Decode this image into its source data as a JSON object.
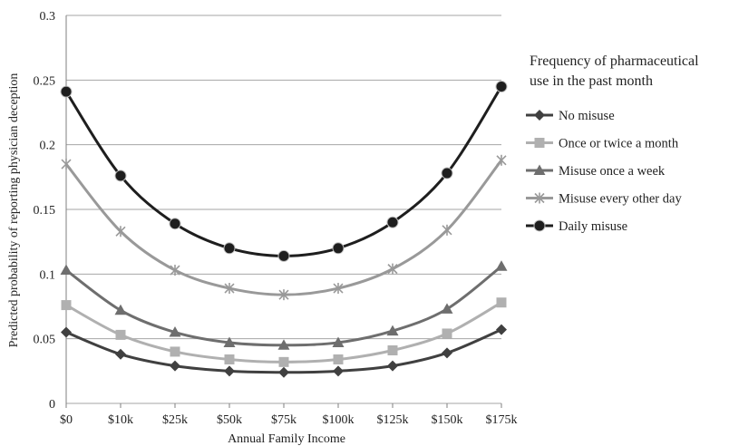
{
  "chart_data": {
    "type": "line",
    "xlabel": "Annual Family Income",
    "ylabel": "Predicted probability of reporting physician deception",
    "categories": [
      "$0",
      "$10k",
      "$25k",
      "$50k",
      "$75k",
      "$100k",
      "$125k",
      "$150k",
      "$175k"
    ],
    "ylim": [
      0,
      0.3
    ],
    "yticks": [
      "0",
      "0.05",
      "0.1",
      "0.15",
      "0.2",
      "0.25",
      "0.3"
    ],
    "grid": "horizontal",
    "legend_title": "Frequency of pharmaceutical use in the past month",
    "legend_position": "right",
    "series": [
      {
        "name": "No misuse",
        "marker": "diamond",
        "color": "#404040",
        "values": [
          0.055,
          0.038,
          0.029,
          0.025,
          0.024,
          0.025,
          0.029,
          0.039,
          0.057
        ]
      },
      {
        "name": "Once or twice a month",
        "marker": "square",
        "color": "#b0b0b0",
        "values": [
          0.076,
          0.053,
          0.04,
          0.034,
          0.032,
          0.034,
          0.041,
          0.054,
          0.078
        ]
      },
      {
        "name": "Misuse once a week",
        "marker": "triangle",
        "color": "#6e6e6e",
        "values": [
          0.103,
          0.072,
          0.055,
          0.047,
          0.045,
          0.047,
          0.056,
          0.073,
          0.106
        ]
      },
      {
        "name": "Misuse every other day",
        "marker": "star",
        "color": "#999999",
        "values": [
          0.185,
          0.133,
          0.103,
          0.089,
          0.084,
          0.089,
          0.104,
          0.134,
          0.188
        ]
      },
      {
        "name": "Daily misuse",
        "marker": "circle",
        "color": "#1e1e1e",
        "values": [
          0.241,
          0.176,
          0.139,
          0.12,
          0.114,
          0.12,
          0.14,
          0.178,
          0.245
        ]
      }
    ]
  }
}
